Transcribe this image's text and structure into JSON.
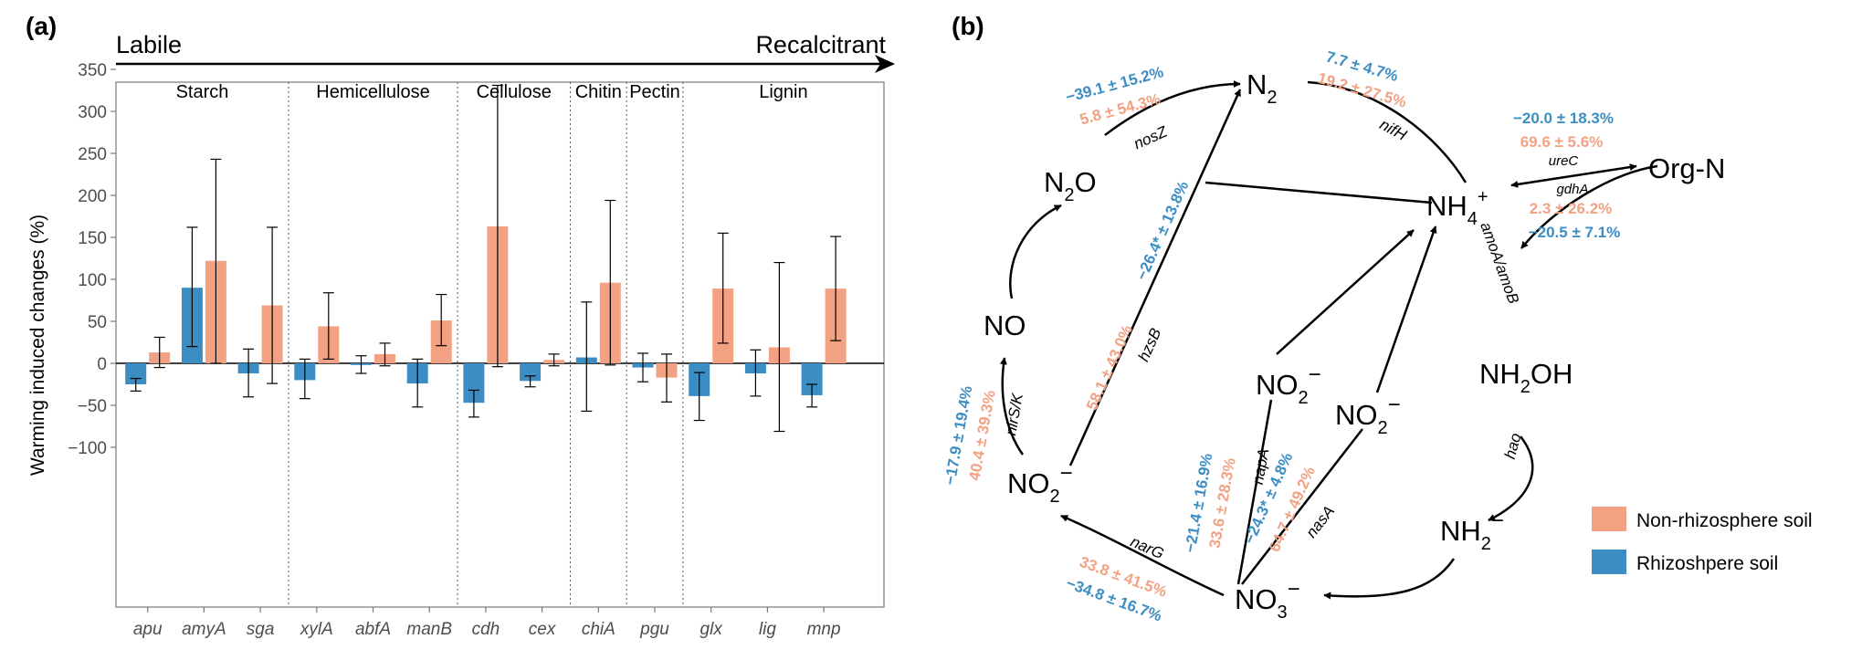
{
  "panel_a": {
    "label": "(a)",
    "gradient_left": "Labile",
    "gradient_right": "Recalcitrant",
    "colors": {
      "non_rhizosphere": "#f2a283",
      "rhizosphere": "#3c8dc4"
    }
  },
  "panel_b": {
    "label": "(b)",
    "nodes": {
      "n2": "N",
      "n2_sub": "2",
      "n2o_a": "N",
      "n2o_sub": "2",
      "n2o_b": "O",
      "no": "NO",
      "no2_left": "NO",
      "no2_left_sub": "2",
      "no2_left_sup": "−",
      "no2_mid": "NO",
      "no2_mid_sub": "2",
      "no2_mid_sup": "−",
      "no2_right": "NO",
      "no2_right_sub": "2",
      "no2_right_sup": "−",
      "no3": "NO",
      "no3_sub": "3",
      "no3_sup": "−",
      "nh4": "NH",
      "nh4_sub": "4",
      "nh4_sup": "+",
      "nh2oh_a": "NH",
      "nh2oh_sub": "2",
      "nh2oh_b": "OH",
      "nh2": "NH",
      "nh2_sub": "2",
      "nh2_sup": "−",
      "orgn": "Org-N"
    },
    "genes": {
      "nosZ": "nosZ",
      "nifH": "nifH",
      "ureC": "ureC",
      "gdhA": "gdhA",
      "amoA": "amoA/amoB",
      "hao": "hao",
      "hzsB": "hzsB",
      "nirS": "nirS/K",
      "napA": "napA",
      "nasA": "nasA",
      "narG": "narG"
    },
    "values": {
      "nosZ_rhizo": "−39.1 ± 15.2%",
      "nosZ_non": "5.8 ± 54.3%",
      "nifH_rhizo": "7.7 ± 4.7%",
      "nifH_non": "19.2 ± 27.5%",
      "ureC_rhizo": "−20.0 ± 18.3%",
      "ureC_non": "69.6 ± 5.6%",
      "gdhA_non": "2.3 ± 26.2%",
      "gdhA_rhizo": "−20.5 ± 7.1%",
      "hzsB_rhizo": "−26.4* ± 13.8%",
      "hzsB_non": "58.1 ± 43.0%",
      "nirS_rhizo": "−17.9 ± 19.4%",
      "nirS_non": "40.4 ± 39.3%",
      "napA_rhizo": "−21.4 ± 16.9%",
      "napA_non": "33.6 ± 28.3%",
      "nasA_rhizo": "−24.3* ± 4.8%",
      "nasA_non": "64.7 ± 49.2%",
      "narG_non": "33.8 ± 41.5%",
      "narG_rhizo": "−34.8 ± 16.7%"
    },
    "legend": [
      {
        "label": "Non-rhizosphere soil",
        "color": "#f2a283"
      },
      {
        "label": "Rhizoshpere soil",
        "color": "#3c8dc4"
      }
    ]
  },
  "chart_data": {
    "type": "bar",
    "ylabel": "Warming induced changes (%)",
    "ylim": [
      -120,
      350
    ],
    "yticks": [
      -100,
      -50,
      0,
      50,
      100,
      150,
      200,
      250,
      300,
      350
    ],
    "grid": false,
    "categories": [
      "apu",
      "amyA",
      "sga",
      "xylA",
      "abfA",
      "manB",
      "cdh",
      "cex",
      "chiA",
      "pgu",
      "glx",
      "lig",
      "mnp"
    ],
    "groups": [
      {
        "name": "Starch",
        "genes": [
          "apu",
          "amyA",
          "sga"
        ]
      },
      {
        "name": "Hemicellulose",
        "genes": [
          "xylA",
          "abfA",
          "manB"
        ]
      },
      {
        "name": "Cellulose",
        "genes": [
          "cdh",
          "cex"
        ]
      },
      {
        "name": "Chitin",
        "genes": [
          "chiA"
        ]
      },
      {
        "name": "Pectin",
        "genes": [
          "pgu"
        ]
      },
      {
        "name": "Lignin",
        "genes": [
          "glx",
          "lig",
          "mnp"
        ]
      }
    ],
    "series": [
      {
        "name": "Rhizoshpere soil",
        "values": [
          -25,
          90,
          -12,
          -20,
          -2,
          -24,
          -47,
          -21,
          7,
          -5,
          -39,
          -12,
          -38
        ],
        "err_lo": [
          -33,
          20,
          -40,
          -42,
          -12,
          -52,
          -64,
          -28,
          -57,
          -22,
          -68,
          -39,
          -52
        ],
        "err_hi": [
          -18,
          162,
          17,
          5,
          9,
          5,
          -32,
          -15,
          73,
          12,
          -11,
          16,
          -25
        ]
      },
      {
        "name": "Non-rhizosphere soil",
        "values": [
          13,
          122,
          69,
          44,
          11,
          51,
          163,
          4,
          96,
          -17,
          89,
          19,
          89
        ],
        "err_lo": [
          -5,
          0,
          -24,
          5,
          -3,
          21,
          -4,
          -3,
          -2,
          -46,
          24,
          -81,
          27
        ],
        "err_hi": [
          31,
          243,
          162,
          84,
          24,
          82,
          331,
          11,
          194,
          11,
          155,
          120,
          151
        ]
      }
    ]
  }
}
